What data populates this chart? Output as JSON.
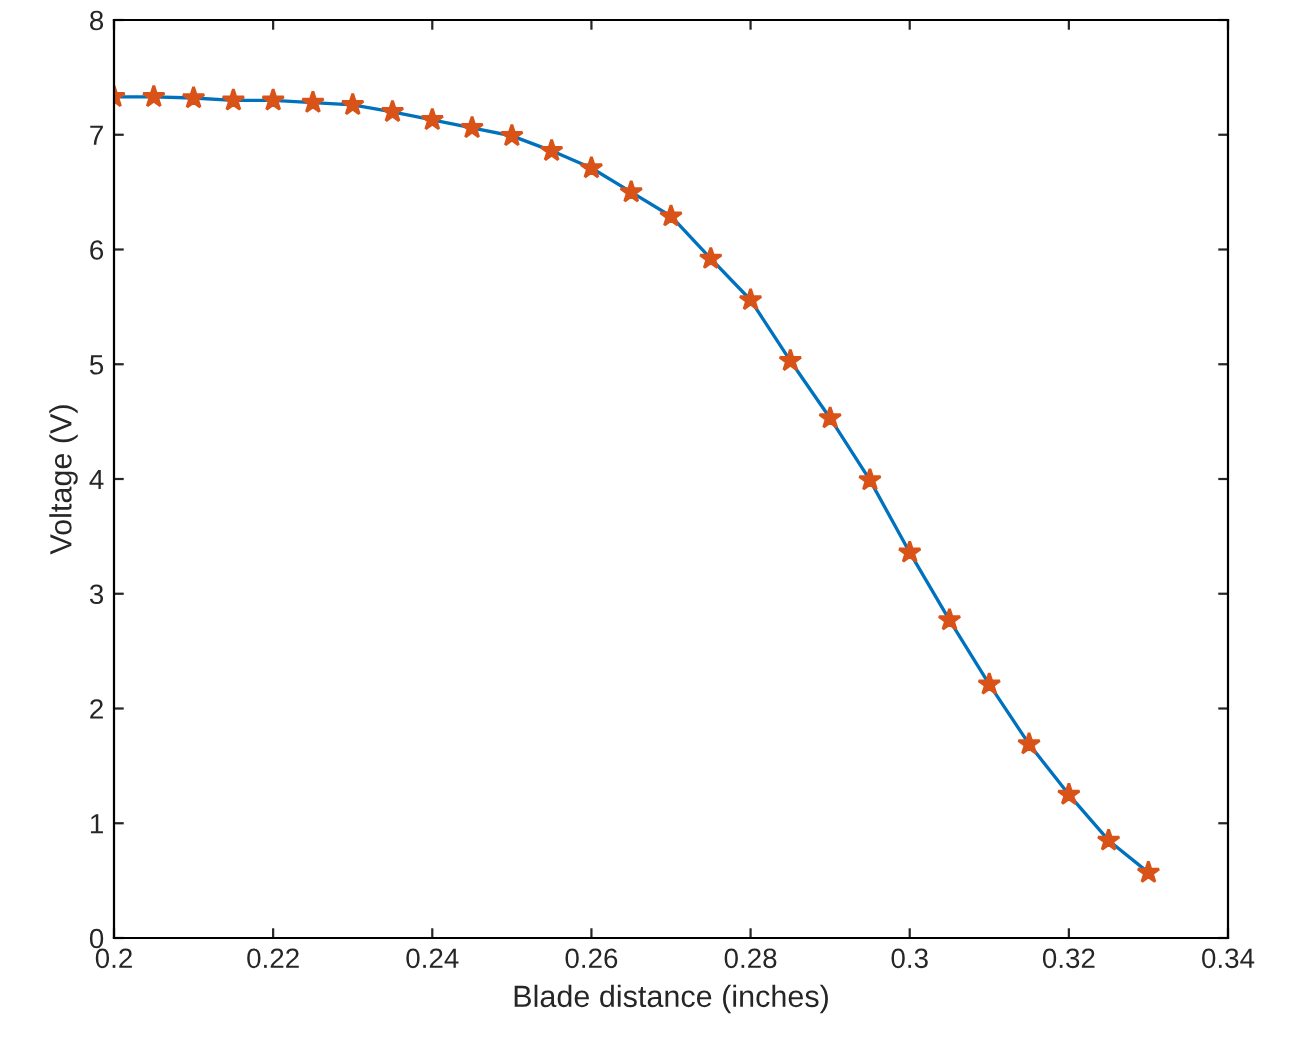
{
  "chart_data": {
    "type": "line",
    "xlabel": "Blade distance (inches)",
    "ylabel": "Voltage (V)",
    "x": [
      0.2,
      0.205,
      0.21,
      0.215,
      0.22,
      0.225,
      0.23,
      0.235,
      0.24,
      0.245,
      0.25,
      0.255,
      0.26,
      0.265,
      0.27,
      0.275,
      0.28,
      0.285,
      0.29,
      0.295,
      0.3,
      0.305,
      0.31,
      0.315,
      0.32,
      0.325,
      0.33
    ],
    "series": [
      {
        "color": "#0072bd",
        "marker": "none",
        "values": [
          7.33,
          7.33,
          7.32,
          7.3,
          7.3,
          7.28,
          7.26,
          7.2,
          7.13,
          7.06,
          6.99,
          6.86,
          6.71,
          6.5,
          6.29,
          5.92,
          5.56,
          5.03,
          4.53,
          3.99,
          3.36,
          2.77,
          2.21,
          1.69,
          1.25,
          0.85,
          0.57
        ]
      },
      {
        "type": "scatter",
        "color": "#d95319",
        "marker": "star",
        "values": [
          7.33,
          7.33,
          7.32,
          7.3,
          7.3,
          7.28,
          7.26,
          7.2,
          7.13,
          7.06,
          6.99,
          6.86,
          6.71,
          6.5,
          6.29,
          5.92,
          5.56,
          5.03,
          4.53,
          3.99,
          3.36,
          2.77,
          2.21,
          1.69,
          1.25,
          0.85,
          0.57
        ]
      }
    ],
    "xlim": [
      0.2,
      0.34
    ],
    "xticks": [
      0.2,
      0.22,
      0.24,
      0.26,
      0.28,
      0.3,
      0.32,
      0.34
    ],
    "ylim": [
      0,
      8
    ],
    "yticks": [
      0,
      1,
      2,
      3,
      4,
      5,
      6,
      7,
      8
    ],
    "grid": false
  }
}
